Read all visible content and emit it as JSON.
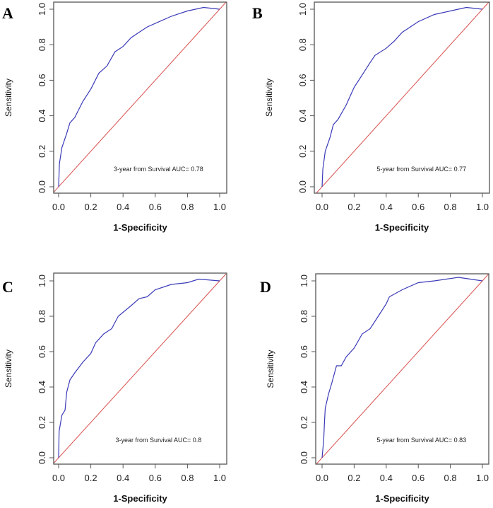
{
  "chart_data": [
    {
      "type": "line",
      "panel_label": "A",
      "xlabel": "1-Specificity",
      "ylabel": "Sensitivity",
      "xlim": [
        0,
        1
      ],
      "ylim": [
        0,
        1
      ],
      "x_ticks": [
        "0.0",
        "0.2",
        "0.4",
        "0.6",
        "0.8",
        "1.0"
      ],
      "y_ticks": [
        "0.0",
        "0.2",
        "0.4",
        "0.6",
        "0.8",
        "1.0"
      ],
      "annotation": "3-year from Survival AUC= 0.78",
      "series": [
        {
          "name": "ROC",
          "color": "#3a3ab8",
          "x": [
            0,
            0.005,
            0.02,
            0.05,
            0.07,
            0.1,
            0.15,
            0.2,
            0.25,
            0.3,
            0.35,
            0.4,
            0.45,
            0.5,
            0.55,
            0.6,
            0.7,
            0.8,
            0.9,
            1
          ],
          "y": [
            0,
            0.13,
            0.22,
            0.3,
            0.36,
            0.39,
            0.48,
            0.55,
            0.64,
            0.68,
            0.76,
            0.79,
            0.84,
            0.87,
            0.9,
            0.92,
            0.96,
            0.99,
            1.01,
            1
          ]
        },
        {
          "name": "reference",
          "color": "#d9504f",
          "x": [
            -0.04,
            1.04
          ],
          "y": [
            -0.04,
            1.04
          ]
        }
      ]
    },
    {
      "type": "line",
      "panel_label": "B",
      "xlabel": "1-Specificity",
      "ylabel": "Sensitivity",
      "xlim": [
        0,
        1
      ],
      "ylim": [
        0,
        1
      ],
      "x_ticks": [
        "0.0",
        "0.2",
        "0.4",
        "0.6",
        "0.8",
        "1.0"
      ],
      "y_ticks": [
        "0.0",
        "0.2",
        "0.4",
        "0.6",
        "0.8",
        "1.0"
      ],
      "annotation": "5-year from Survival AUC= 0.77",
      "series": [
        {
          "name": "ROC",
          "color": "#3a3ab8",
          "x": [
            0,
            0.005,
            0.02,
            0.05,
            0.07,
            0.1,
            0.15,
            0.2,
            0.25,
            0.3,
            0.33,
            0.4,
            0.45,
            0.5,
            0.55,
            0.6,
            0.7,
            0.8,
            0.9,
            1
          ],
          "y": [
            0,
            0.1,
            0.2,
            0.28,
            0.35,
            0.38,
            0.46,
            0.56,
            0.63,
            0.7,
            0.74,
            0.78,
            0.82,
            0.87,
            0.9,
            0.93,
            0.97,
            0.99,
            1.01,
            1
          ]
        },
        {
          "name": "reference",
          "color": "#d9504f",
          "x": [
            -0.04,
            1.04
          ],
          "y": [
            -0.04,
            1.04
          ]
        }
      ]
    },
    {
      "type": "line",
      "panel_label": "C",
      "xlabel": "1-Specificity",
      "ylabel": "Sensitivity",
      "xlim": [
        0,
        1
      ],
      "ylim": [
        0,
        1
      ],
      "x_ticks": [
        "0.0",
        "0.2",
        "0.4",
        "0.6",
        "0.8",
        "1.0"
      ],
      "y_ticks": [
        "0.0",
        "0.2",
        "0.4",
        "0.6",
        "0.8",
        "1.0"
      ],
      "annotation": "3-year from Survival AUC= 0.8",
      "series": [
        {
          "name": "ROC",
          "color": "#3a3ab8",
          "x": [
            0,
            0.003,
            0.02,
            0.04,
            0.05,
            0.07,
            0.1,
            0.15,
            0.2,
            0.23,
            0.28,
            0.33,
            0.37,
            0.45,
            0.5,
            0.55,
            0.6,
            0.7,
            0.8,
            0.87,
            1
          ],
          "y": [
            0,
            0.15,
            0.24,
            0.27,
            0.37,
            0.44,
            0.48,
            0.54,
            0.59,
            0.65,
            0.7,
            0.73,
            0.8,
            0.86,
            0.9,
            0.91,
            0.95,
            0.98,
            0.99,
            1.01,
            1
          ]
        },
        {
          "name": "reference",
          "color": "#d9504f",
          "x": [
            -0.04,
            1.04
          ],
          "y": [
            -0.04,
            1.04
          ]
        }
      ]
    },
    {
      "type": "line",
      "panel_label": "D",
      "xlabel": "1-Specificity",
      "ylabel": "Sensitivity",
      "xlim": [
        0,
        1
      ],
      "ylim": [
        0,
        1
      ],
      "x_ticks": [
        "0.0",
        "0.2",
        "0.4",
        "0.6",
        "0.8",
        "1.0"
      ],
      "y_ticks": [
        "0.0",
        "0.2",
        "0.4",
        "0.6",
        "0.8",
        "1.0"
      ],
      "annotation": "5-year from Survival AUC= 0.83",
      "series": [
        {
          "name": "ROC",
          "color": "#3a3ab8",
          "x": [
            0,
            0.01,
            0.015,
            0.02,
            0.04,
            0.06,
            0.09,
            0.12,
            0.15,
            0.2,
            0.25,
            0.3,
            0.35,
            0.4,
            0.42,
            0.5,
            0.6,
            0.7,
            0.85,
            1
          ],
          "y": [
            0,
            0.1,
            0.2,
            0.28,
            0.36,
            0.42,
            0.52,
            0.52,
            0.57,
            0.62,
            0.7,
            0.73,
            0.8,
            0.87,
            0.91,
            0.95,
            0.99,
            1,
            1.02,
            1
          ]
        },
        {
          "name": "reference",
          "color": "#d9504f",
          "x": [
            -0.04,
            1.04
          ],
          "y": [
            -0.04,
            1.04
          ]
        }
      ]
    }
  ]
}
